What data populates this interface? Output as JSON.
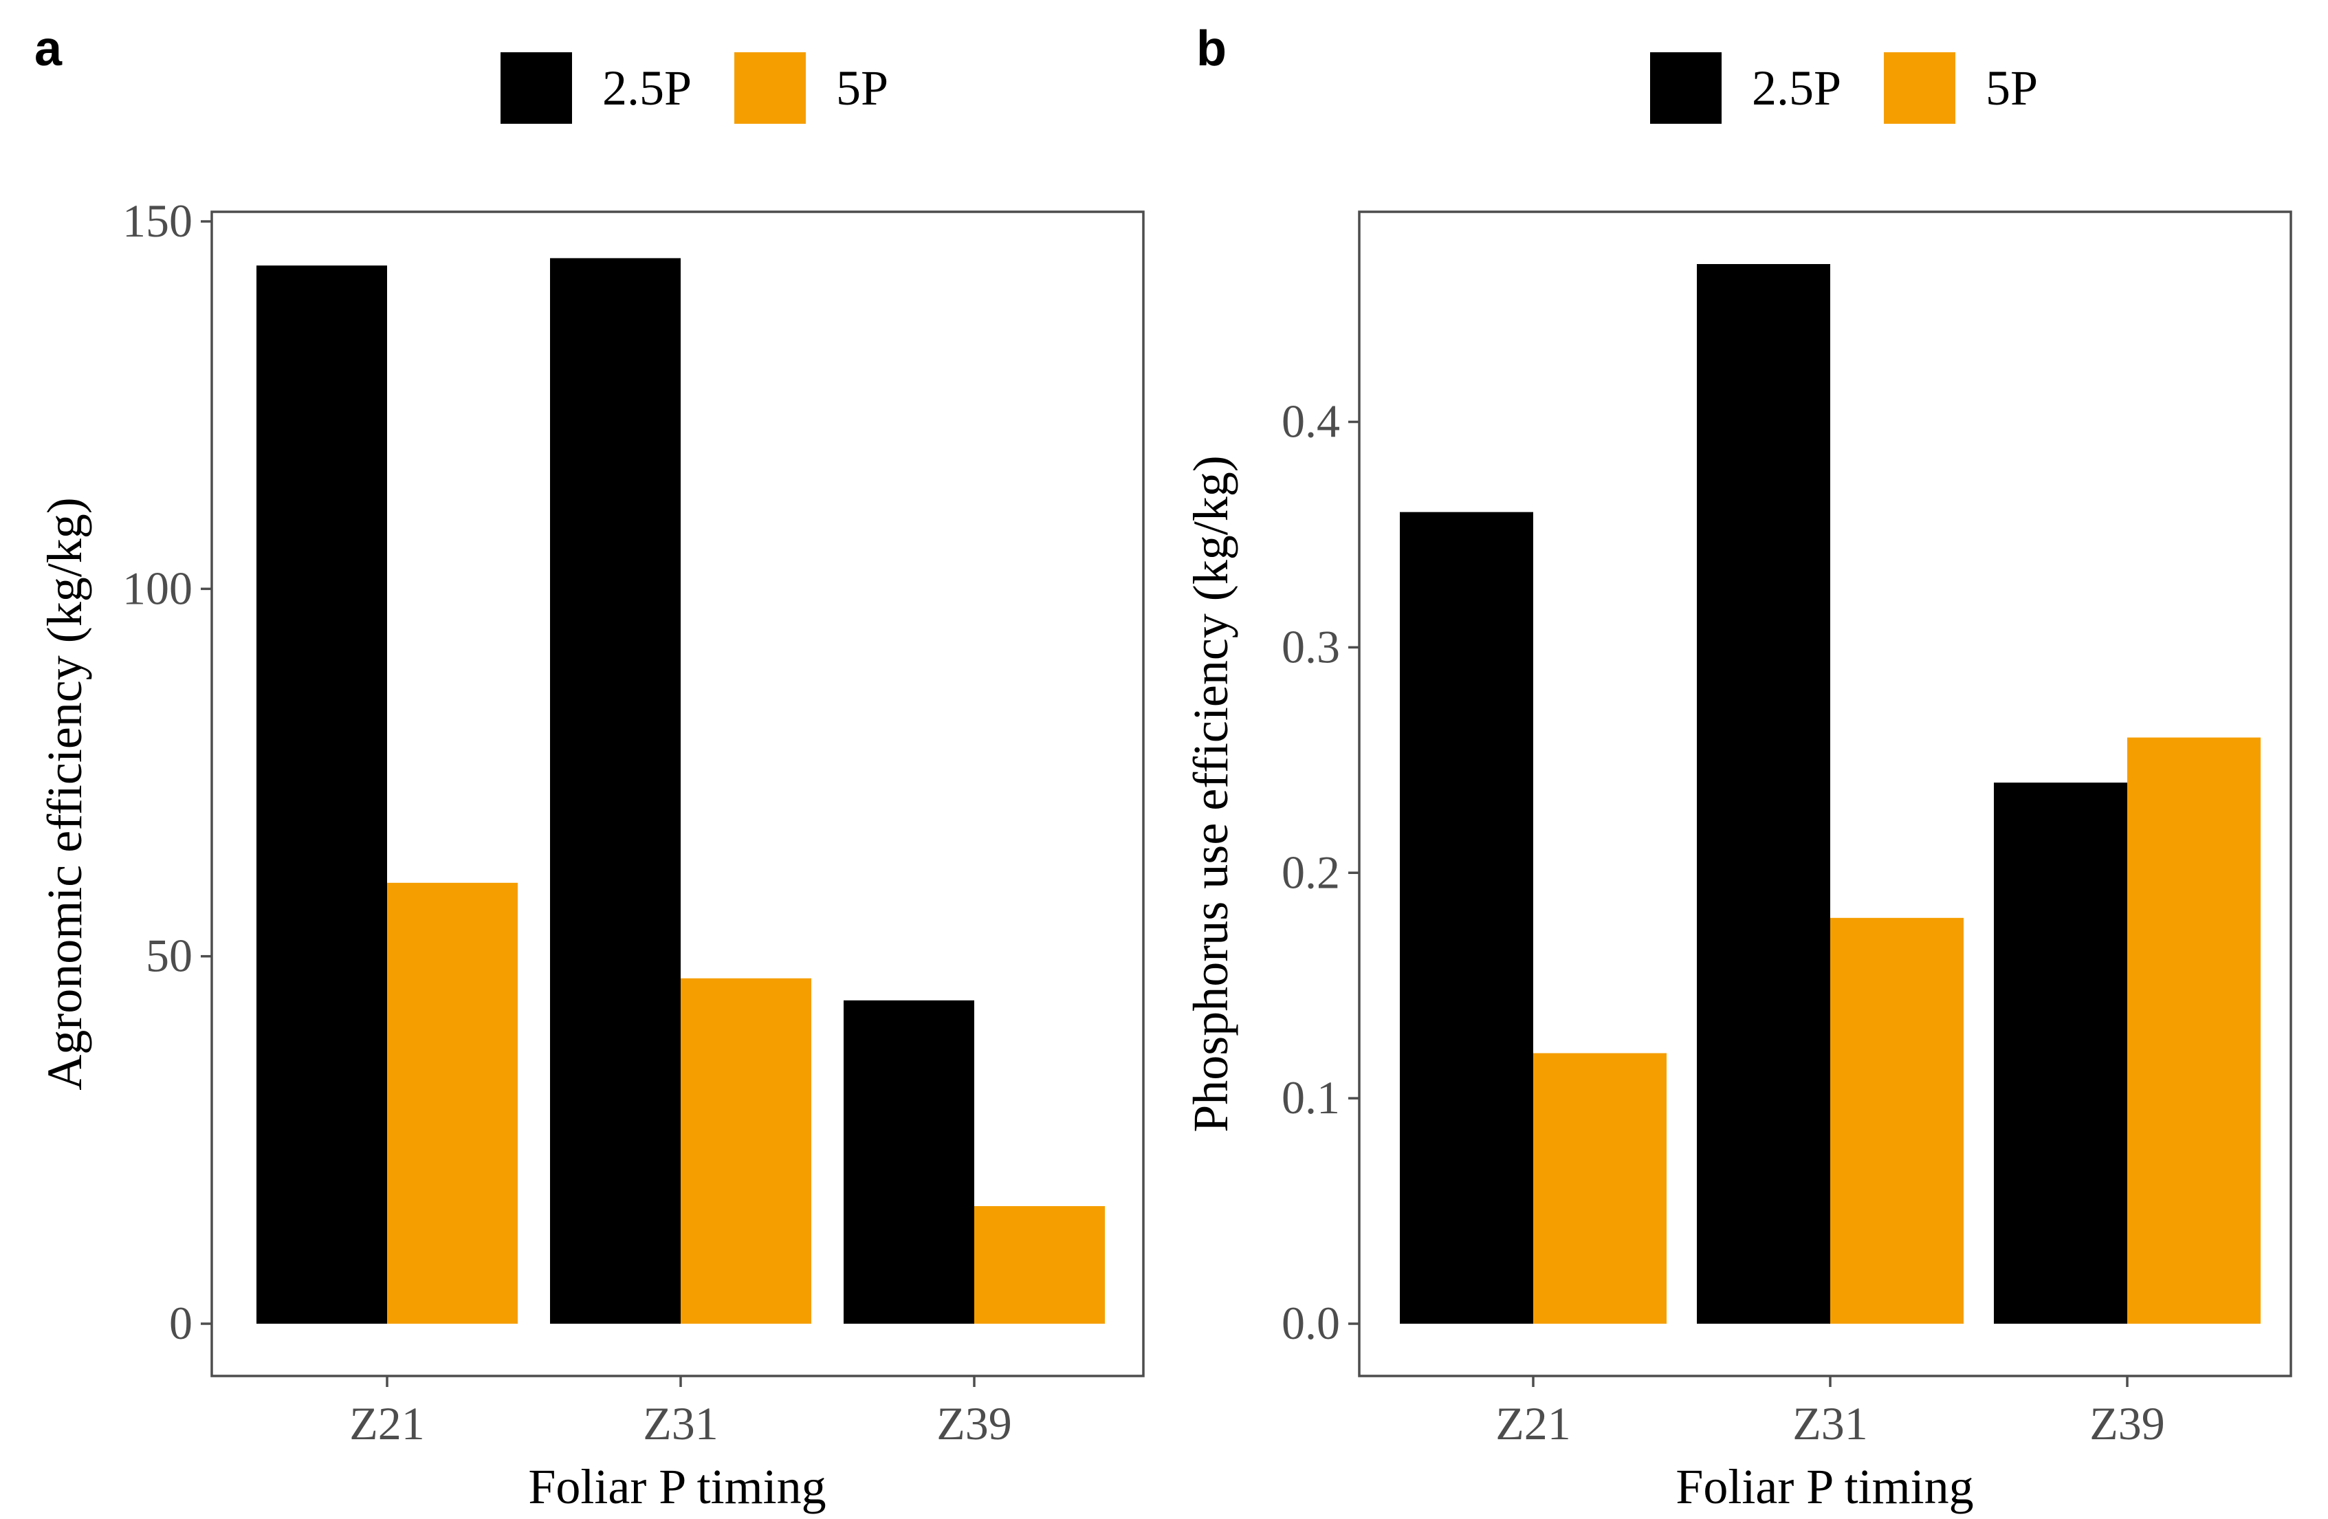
{
  "colors": {
    "2.5P": "#000000",
    "5P": "#f59e00",
    "frame": "#4d4d4d"
  },
  "chart_data": [
    {
      "panel": "a",
      "type": "bar",
      "categories": [
        "Z21",
        "Z31",
        "Z39"
      ],
      "series": [
        {
          "name": "2.5P",
          "values": [
            144,
            145,
            44
          ]
        },
        {
          "name": "5P",
          "values": [
            60,
            47,
            16
          ]
        }
      ],
      "xlabel": "Foliar P timing",
      "ylabel": "Agronomic efficiency (kg/kg)",
      "ylim": [
        0,
        150
      ],
      "yticks": [
        0,
        50,
        100,
        150
      ],
      "ytick_labels": [
        "0",
        "50",
        "100",
        "150"
      ],
      "legend_position": "top",
      "grid": false
    },
    {
      "panel": "b",
      "type": "bar",
      "categories": [
        "Z21",
        "Z31",
        "Z39"
      ],
      "series": [
        {
          "name": "2.5P",
          "values": [
            0.36,
            0.47,
            0.24
          ]
        },
        {
          "name": "5P",
          "values": [
            0.12,
            0.18,
            0.26
          ]
        }
      ],
      "xlabel": "Foliar P timing",
      "ylabel": "Phosphorus use efficiency (kg/kg)",
      "ylim": [
        0,
        0.47
      ],
      "yticks": [
        0,
        0.1,
        0.2,
        0.3,
        0.4
      ],
      "ytick_labels": [
        "0.0",
        "0.1",
        "0.2",
        "0.3",
        "0.4"
      ],
      "legend_position": "top",
      "grid": false
    }
  ]
}
